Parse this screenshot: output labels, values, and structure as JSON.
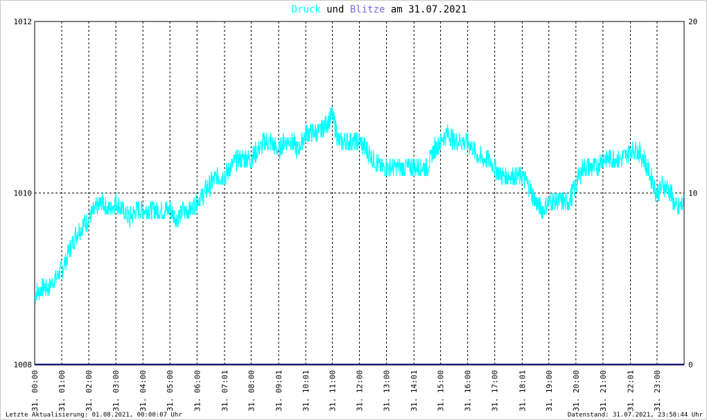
{
  "chart_data": {
    "type": "line",
    "title_parts": [
      {
        "text": "Druck",
        "color": "#00ffff"
      },
      {
        "text": " und ",
        "color": "#000000"
      },
      {
        "text": "Blitze",
        "color": "#7b68ee"
      },
      {
        "text": " am 31.07.2021",
        "color": "#000000"
      }
    ],
    "left_axis": {
      "range": [
        1008,
        1012
      ],
      "ticks": [
        "1012",
        "1010",
        "1008"
      ],
      "tick_values": [
        1012,
        1010,
        1008
      ]
    },
    "right_axis": {
      "range": [
        0,
        20
      ],
      "ticks": [
        "20",
        "10",
        "0"
      ],
      "tick_values": [
        20,
        10,
        0
      ]
    },
    "x_tick_labels": [
      "31. 00:00",
      "31. 01:00",
      "31. 02:00",
      "31. 03:00",
      "31. 04:00",
      "31. 05:00",
      "31. 06:00",
      "31. 07:01",
      "31. 08:00",
      "31. 09:01",
      "31. 10:01",
      "31. 11:00",
      "31. 12:00",
      "31. 13:00",
      "31. 14:01",
      "31. 15:00",
      "31. 16:00",
      "31. 17:00",
      "31. 18:01",
      "31. 19:00",
      "31. 20:00",
      "31. 21:00",
      "31. 22:01",
      "31. 23:00"
    ],
    "x_tick_hours": [
      0,
      1,
      2,
      3,
      4,
      5,
      6,
      7.017,
      8,
      9.017,
      10.017,
      11,
      12,
      13,
      14.017,
      15,
      16,
      17,
      18.017,
      19,
      20,
      21,
      22.017,
      23
    ],
    "x_range_hours": [
      0,
      24
    ],
    "grid": true,
    "series": [
      {
        "name": "Druck",
        "color": "#00ffff",
        "axis": "left",
        "hours": [
          0,
          0.25,
          0.5,
          0.75,
          1,
          1.25,
          1.5,
          1.75,
          2,
          2.25,
          2.5,
          2.75,
          3,
          3.25,
          3.5,
          3.75,
          4,
          4.25,
          4.5,
          4.75,
          5,
          5.25,
          5.5,
          5.75,
          6,
          6.25,
          6.5,
          6.75,
          7,
          7.25,
          7.5,
          7.75,
          8,
          8.25,
          8.5,
          8.75,
          9,
          9.25,
          9.5,
          9.75,
          10,
          10.25,
          10.5,
          10.75,
          11,
          11.25,
          11.5,
          11.75,
          12,
          12.25,
          12.5,
          12.75,
          13,
          13.25,
          13.5,
          13.75,
          14,
          14.25,
          14.5,
          14.75,
          15,
          15.25,
          15.5,
          15.75,
          16,
          16.25,
          16.5,
          16.75,
          17,
          17.25,
          17.5,
          17.75,
          18,
          18.25,
          18.5,
          18.75,
          19,
          19.25,
          19.5,
          19.75,
          20,
          20.25,
          20.5,
          20.75,
          21,
          21.25,
          21.5,
          21.75,
          22,
          22.25,
          22.5,
          22.75,
          23,
          23.25,
          23.5,
          23.75,
          24
        ],
        "values": [
          1008.8,
          1008.9,
          1008.9,
          1009.0,
          1009.1,
          1009.3,
          1009.5,
          1009.6,
          1009.7,
          1009.8,
          1009.9,
          1009.8,
          1009.9,
          1009.8,
          1009.7,
          1009.8,
          1009.8,
          1009.8,
          1009.8,
          1009.8,
          1009.8,
          1009.7,
          1009.8,
          1009.8,
          1009.9,
          1010.0,
          1010.1,
          1010.2,
          1010.2,
          1010.3,
          1010.4,
          1010.4,
          1010.4,
          1010.5,
          1010.6,
          1010.6,
          1010.5,
          1010.6,
          1010.6,
          1010.5,
          1010.7,
          1010.7,
          1010.7,
          1010.8,
          1010.9,
          1010.6,
          1010.6,
          1010.6,
          1010.6,
          1010.5,
          1010.4,
          1010.3,
          1010.3,
          1010.3,
          1010.3,
          1010.3,
          1010.3,
          1010.3,
          1010.3,
          1010.5,
          1010.6,
          1010.7,
          1010.6,
          1010.6,
          1010.6,
          1010.5,
          1010.4,
          1010.4,
          1010.3,
          1010.2,
          1010.2,
          1010.2,
          1010.2,
          1010.1,
          1009.9,
          1009.8,
          1009.9,
          1009.9,
          1009.9,
          1009.9,
          1010.1,
          1010.3,
          1010.3,
          1010.3,
          1010.4,
          1010.4,
          1010.4,
          1010.4,
          1010.5,
          1010.5,
          1010.4,
          1010.2,
          1010.0,
          1010.1,
          1010.0,
          1009.8,
          1009.9
        ]
      },
      {
        "name": "Blitze",
        "color": "#1a1a6e",
        "axis": "right",
        "hours": [
          0,
          24
        ],
        "values": [
          0,
          0
        ]
      }
    ]
  },
  "footer": {
    "left": "Letzte Aktualisierung: 01.08.2021, 00:00:07 Uhr",
    "right": "Datenstand: 31.07.2021, 23:58:44 Uhr"
  }
}
